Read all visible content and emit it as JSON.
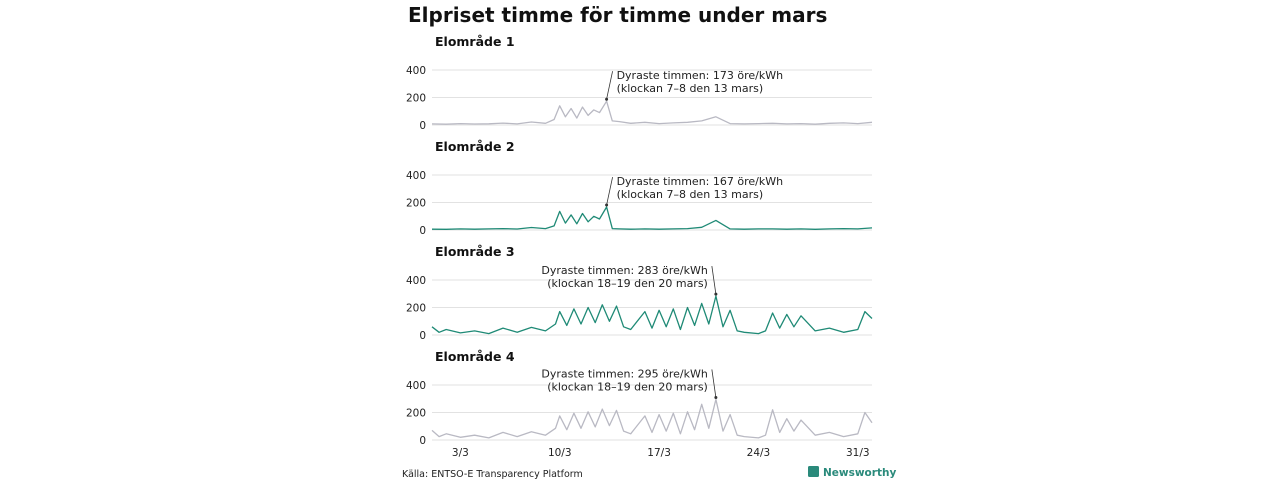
{
  "title": "Elpriset timme för timme under mars",
  "source": "Källa: ENTSO-E Transparency Platform",
  "brand": {
    "name": "Newsworthy",
    "icon": "newsworthy-logo-icon",
    "color": "#2a8a7b"
  },
  "chart_data": {
    "type": "line",
    "unit": "öre/kWh",
    "ylim": [
      0,
      400
    ],
    "yticks": [
      0,
      200,
      400
    ],
    "xlim": [
      1,
      32
    ],
    "xticks": [
      {
        "label": "3/3",
        "day": 3
      },
      {
        "label": "10/3",
        "day": 10
      },
      {
        "label": "17/3",
        "day": 17
      },
      {
        "label": "24/3",
        "day": 24
      },
      {
        "label": "31/3",
        "day": 31
      }
    ],
    "grid": true,
    "panels": [
      {
        "name": "Elområde 1",
        "color": "#b9b9c3",
        "annotation": {
          "line1": "Dyraste timmen: 173 öre/kWh",
          "line2": "(klockan 7–8 den 13 mars)",
          "day": 13.3,
          "value": 173
        },
        "series": [
          {
            "day": 1,
            "value": 8
          },
          {
            "day": 2,
            "value": 6
          },
          {
            "day": 3,
            "value": 10
          },
          {
            "day": 4,
            "value": 7
          },
          {
            "day": 5,
            "value": 9
          },
          {
            "day": 6,
            "value": 14
          },
          {
            "day": 7,
            "value": 8
          },
          {
            "day": 8,
            "value": 22
          },
          {
            "day": 9,
            "value": 12
          },
          {
            "day": 9.6,
            "value": 40
          },
          {
            "day": 10,
            "value": 140
          },
          {
            "day": 10.4,
            "value": 60
          },
          {
            "day": 10.8,
            "value": 120
          },
          {
            "day": 11.2,
            "value": 50
          },
          {
            "day": 11.6,
            "value": 130
          },
          {
            "day": 12,
            "value": 70
          },
          {
            "day": 12.4,
            "value": 110
          },
          {
            "day": 12.8,
            "value": 90
          },
          {
            "day": 13.3,
            "value": 173
          },
          {
            "day": 13.7,
            "value": 30
          },
          {
            "day": 14.2,
            "value": 25
          },
          {
            "day": 15,
            "value": 12
          },
          {
            "day": 16,
            "value": 20
          },
          {
            "day": 17,
            "value": 10
          },
          {
            "day": 18,
            "value": 15
          },
          {
            "day": 19,
            "value": 20
          },
          {
            "day": 20,
            "value": 30
          },
          {
            "day": 21,
            "value": 60
          },
          {
            "day": 22,
            "value": 10
          },
          {
            "day": 23,
            "value": 8
          },
          {
            "day": 24,
            "value": 10
          },
          {
            "day": 25,
            "value": 12
          },
          {
            "day": 26,
            "value": 8
          },
          {
            "day": 27,
            "value": 10
          },
          {
            "day": 28,
            "value": 6
          },
          {
            "day": 29,
            "value": 12
          },
          {
            "day": 30,
            "value": 15
          },
          {
            "day": 31,
            "value": 10
          },
          {
            "day": 32,
            "value": 20
          }
        ]
      },
      {
        "name": "Elområde 2",
        "color": "#1f8a76",
        "annotation": {
          "line1": "Dyraste timmen: 167 öre/kWh",
          "line2": "(klockan 7–8 den 13 mars)",
          "day": 13.3,
          "value": 167
        },
        "series": [
          {
            "day": 1,
            "value": 6
          },
          {
            "day": 2,
            "value": 5
          },
          {
            "day": 3,
            "value": 8
          },
          {
            "day": 4,
            "value": 6
          },
          {
            "day": 5,
            "value": 8
          },
          {
            "day": 6,
            "value": 10
          },
          {
            "day": 7,
            "value": 7
          },
          {
            "day": 8,
            "value": 18
          },
          {
            "day": 9,
            "value": 10
          },
          {
            "day": 9.6,
            "value": 30
          },
          {
            "day": 10,
            "value": 135
          },
          {
            "day": 10.4,
            "value": 50
          },
          {
            "day": 10.8,
            "value": 110
          },
          {
            "day": 11.2,
            "value": 45
          },
          {
            "day": 11.6,
            "value": 120
          },
          {
            "day": 12,
            "value": 60
          },
          {
            "day": 12.4,
            "value": 100
          },
          {
            "day": 12.8,
            "value": 80
          },
          {
            "day": 13.3,
            "value": 167
          },
          {
            "day": 13.7,
            "value": 10
          },
          {
            "day": 14.2,
            "value": 8
          },
          {
            "day": 15,
            "value": 6
          },
          {
            "day": 16,
            "value": 8
          },
          {
            "day": 17,
            "value": 6
          },
          {
            "day": 18,
            "value": 8
          },
          {
            "day": 19,
            "value": 10
          },
          {
            "day": 20,
            "value": 20
          },
          {
            "day": 21,
            "value": 70
          },
          {
            "day": 22,
            "value": 8
          },
          {
            "day": 23,
            "value": 6
          },
          {
            "day": 24,
            "value": 8
          },
          {
            "day": 25,
            "value": 8
          },
          {
            "day": 26,
            "value": 6
          },
          {
            "day": 27,
            "value": 8
          },
          {
            "day": 28,
            "value": 5
          },
          {
            "day": 29,
            "value": 8
          },
          {
            "day": 30,
            "value": 10
          },
          {
            "day": 31,
            "value": 8
          },
          {
            "day": 32,
            "value": 15
          }
        ]
      },
      {
        "name": "Elområde 3",
        "color": "#1f8a76",
        "annotation": {
          "line1": "Dyraste timmen: 283 öre/kWh",
          "line2": "(klockan 18–19 den 20 mars)",
          "day": 21,
          "value": 283
        },
        "series": [
          {
            "day": 1,
            "value": 60
          },
          {
            "day": 1.5,
            "value": 20
          },
          {
            "day": 2,
            "value": 40
          },
          {
            "day": 3,
            "value": 15
          },
          {
            "day": 4,
            "value": 30
          },
          {
            "day": 5,
            "value": 10
          },
          {
            "day": 6,
            "value": 50
          },
          {
            "day": 7,
            "value": 20
          },
          {
            "day": 8,
            "value": 55
          },
          {
            "day": 9,
            "value": 30
          },
          {
            "day": 9.7,
            "value": 80
          },
          {
            "day": 10,
            "value": 170
          },
          {
            "day": 10.5,
            "value": 70
          },
          {
            "day": 11,
            "value": 190
          },
          {
            "day": 11.5,
            "value": 80
          },
          {
            "day": 12,
            "value": 200
          },
          {
            "day": 12.5,
            "value": 90
          },
          {
            "day": 13,
            "value": 220
          },
          {
            "day": 13.5,
            "value": 100
          },
          {
            "day": 14,
            "value": 210
          },
          {
            "day": 14.5,
            "value": 60
          },
          {
            "day": 15,
            "value": 40
          },
          {
            "day": 16,
            "value": 170
          },
          {
            "day": 16.5,
            "value": 50
          },
          {
            "day": 17,
            "value": 180
          },
          {
            "day": 17.5,
            "value": 60
          },
          {
            "day": 18,
            "value": 190
          },
          {
            "day": 18.5,
            "value": 40
          },
          {
            "day": 19,
            "value": 200
          },
          {
            "day": 19.5,
            "value": 70
          },
          {
            "day": 20,
            "value": 230
          },
          {
            "day": 20.5,
            "value": 80
          },
          {
            "day": 21,
            "value": 283
          },
          {
            "day": 21.5,
            "value": 60
          },
          {
            "day": 22,
            "value": 180
          },
          {
            "day": 22.5,
            "value": 30
          },
          {
            "day": 23,
            "value": 20
          },
          {
            "day": 24,
            "value": 10
          },
          {
            "day": 24.5,
            "value": 30
          },
          {
            "day": 25,
            "value": 160
          },
          {
            "day": 25.5,
            "value": 50
          },
          {
            "day": 26,
            "value": 150
          },
          {
            "day": 26.5,
            "value": 60
          },
          {
            "day": 27,
            "value": 140
          },
          {
            "day": 28,
            "value": 30
          },
          {
            "day": 29,
            "value": 50
          },
          {
            "day": 30,
            "value": 20
          },
          {
            "day": 31,
            "value": 40
          },
          {
            "day": 31.5,
            "value": 170
          },
          {
            "day": 32,
            "value": 120
          }
        ]
      },
      {
        "name": "Elområde 4",
        "color": "#b9b9c3",
        "annotation": {
          "line1": "Dyraste timmen: 295 öre/kWh",
          "line2": "(klockan 18–19 den 20 mars)",
          "day": 21,
          "value": 295
        },
        "series": [
          {
            "day": 1,
            "value": 70
          },
          {
            "day": 1.5,
            "value": 25
          },
          {
            "day": 2,
            "value": 45
          },
          {
            "day": 3,
            "value": 20
          },
          {
            "day": 4,
            "value": 35
          },
          {
            "day": 5,
            "value": 15
          },
          {
            "day": 6,
            "value": 55
          },
          {
            "day": 7,
            "value": 25
          },
          {
            "day": 8,
            "value": 60
          },
          {
            "day": 9,
            "value": 35
          },
          {
            "day": 9.7,
            "value": 85
          },
          {
            "day": 10,
            "value": 175
          },
          {
            "day": 10.5,
            "value": 75
          },
          {
            "day": 11,
            "value": 195
          },
          {
            "day": 11.5,
            "value": 85
          },
          {
            "day": 12,
            "value": 205
          },
          {
            "day": 12.5,
            "value": 95
          },
          {
            "day": 13,
            "value": 225
          },
          {
            "day": 13.5,
            "value": 105
          },
          {
            "day": 14,
            "value": 215
          },
          {
            "day": 14.5,
            "value": 65
          },
          {
            "day": 15,
            "value": 45
          },
          {
            "day": 16,
            "value": 175
          },
          {
            "day": 16.5,
            "value": 55
          },
          {
            "day": 17,
            "value": 185
          },
          {
            "day": 17.5,
            "value": 65
          },
          {
            "day": 18,
            "value": 195
          },
          {
            "day": 18.5,
            "value": 45
          },
          {
            "day": 19,
            "value": 205
          },
          {
            "day": 19.5,
            "value": 75
          },
          {
            "day": 20,
            "value": 260
          },
          {
            "day": 20.5,
            "value": 85
          },
          {
            "day": 21,
            "value": 295
          },
          {
            "day": 21.5,
            "value": 65
          },
          {
            "day": 22,
            "value": 185
          },
          {
            "day": 22.5,
            "value": 35
          },
          {
            "day": 23,
            "value": 25
          },
          {
            "day": 24,
            "value": 15
          },
          {
            "day": 24.5,
            "value": 35
          },
          {
            "day": 25,
            "value": 220
          },
          {
            "day": 25.5,
            "value": 55
          },
          {
            "day": 26,
            "value": 155
          },
          {
            "day": 26.5,
            "value": 65
          },
          {
            "day": 27,
            "value": 145
          },
          {
            "day": 28,
            "value": 35
          },
          {
            "day": 29,
            "value": 55
          },
          {
            "day": 30,
            "value": 25
          },
          {
            "day": 31,
            "value": 45
          },
          {
            "day": 31.5,
            "value": 200
          },
          {
            "day": 32,
            "value": 125
          }
        ]
      }
    ]
  }
}
